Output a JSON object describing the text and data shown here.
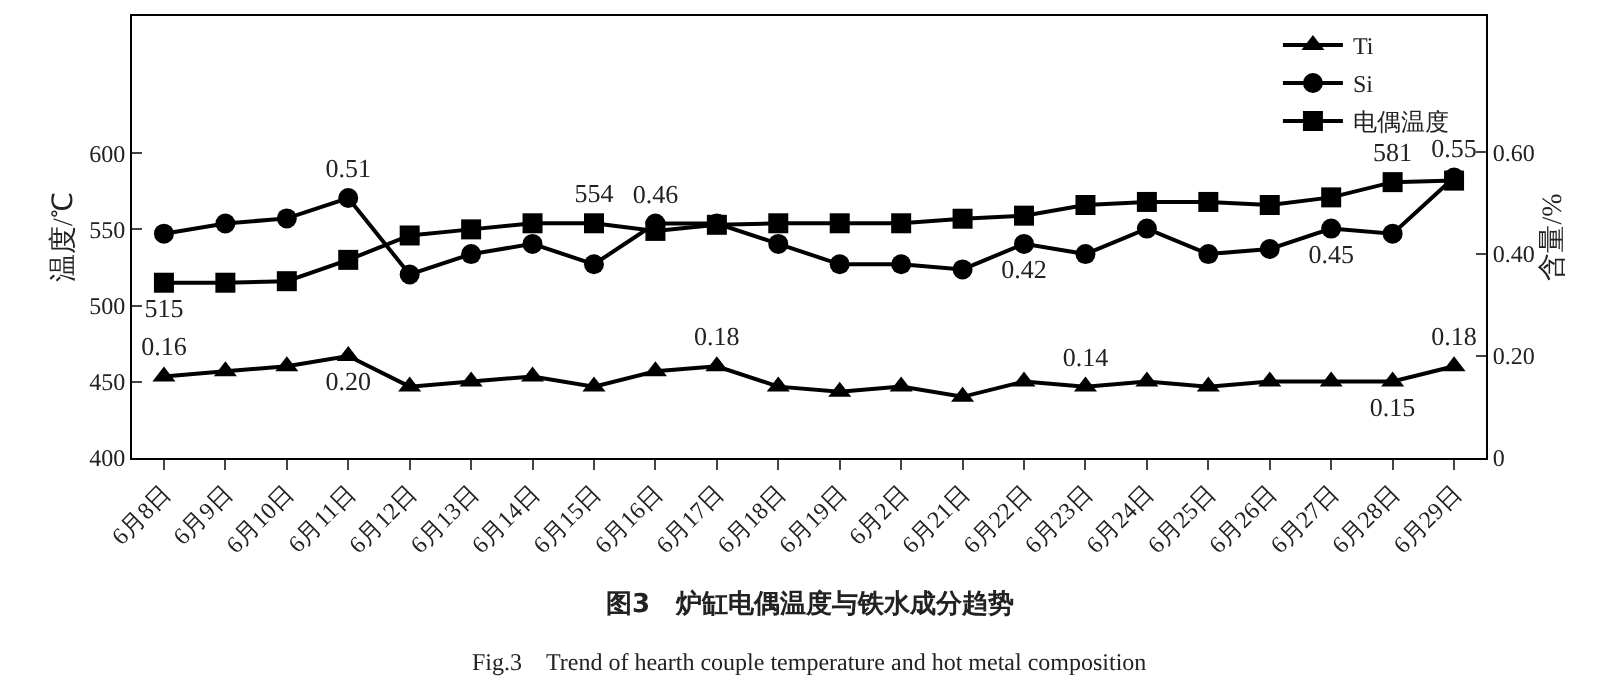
{
  "chart_data": {
    "type": "line",
    "title": "图3　炉缸电偶温度与铁水成分趋势",
    "subtitle": "Fig.3　Trend of hearth couple temperature and hot metal composition",
    "ylabel": "温度/℃",
    "y2label": "含量/%",
    "categories": [
      "6月8日",
      "6月9日",
      "6月10日",
      "6月11日",
      "6月12日",
      "6月13日",
      "6月14日",
      "6月15日",
      "6月16日",
      "6月17日",
      "6月18日",
      "6月19日",
      "6月2日",
      "6月21日",
      "6月22日",
      "6月23日",
      "6月24日",
      "6月25日",
      "6月26日",
      "6月27日",
      "6月28日",
      "6月29日"
    ],
    "series": [
      {
        "name": "Ti",
        "color": "#000000",
        "marker": "triangle",
        "axis": "y2",
        "values": [
          0.16,
          0.17,
          0.18,
          0.2,
          0.14,
          0.15,
          0.16,
          0.14,
          0.17,
          0.18,
          0.14,
          0.13,
          0.14,
          0.12,
          0.15,
          0.14,
          0.15,
          0.14,
          0.15,
          0.15,
          0.15,
          0.18
        ],
        "value_labels": [
          "0.16",
          null,
          null,
          "0.20",
          null,
          null,
          null,
          null,
          null,
          "0.18",
          null,
          null,
          null,
          null,
          null,
          "0.14",
          null,
          null,
          null,
          null,
          "0.15",
          "0.18"
        ]
      },
      {
        "name": "Si",
        "color": "#000000",
        "marker": "circle",
        "axis": "y2",
        "values": [
          0.44,
          0.46,
          0.47,
          0.51,
          0.36,
          0.4,
          0.42,
          0.38,
          0.46,
          0.46,
          0.42,
          0.38,
          0.38,
          0.37,
          0.42,
          0.4,
          0.45,
          0.4,
          0.41,
          0.45,
          0.44,
          0.55
        ],
        "value_labels": [
          null,
          null,
          null,
          "0.51",
          null,
          null,
          null,
          null,
          "0.46",
          null,
          null,
          null,
          null,
          null,
          "0.42",
          null,
          null,
          null,
          null,
          "0.45",
          null,
          "0.55"
        ]
      },
      {
        "name": "电偶温度",
        "color": "#000000",
        "marker": "square",
        "values": [
          515,
          515,
          516,
          530,
          546,
          550,
          554,
          554,
          549,
          553,
          554,
          554,
          554,
          557,
          559,
          566,
          568,
          568,
          566,
          571,
          581,
          582
        ],
        "value_labels": [
          "515",
          null,
          null,
          null,
          null,
          null,
          null,
          "554",
          null,
          null,
          null,
          null,
          null,
          null,
          null,
          null,
          null,
          null,
          null,
          null,
          "581",
          null
        ]
      }
    ],
    "ylim": [
      400,
      690
    ],
    "yticks": [
      400,
      450,
      500,
      550,
      600
    ],
    "y2lim": [
      0,
      0.867
    ],
    "y2ticks": [
      0,
      {
        "value": 0.2,
        "label": "0.20"
      },
      {
        "value": 0.4,
        "label": "0.40"
      },
      {
        "value": 0.6,
        "label": "0.60"
      }
    ],
    "legend": "top right",
    "line_style": "solid"
  }
}
